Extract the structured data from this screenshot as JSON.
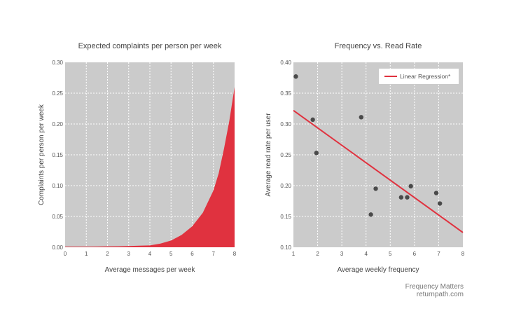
{
  "colors": {
    "panel": "#cbcbcb",
    "accent": "#e0323f",
    "point": "#4a4a4a",
    "text": "#555555",
    "grid": "#ffffff"
  },
  "chart_data": [
    {
      "type": "area",
      "title": "Expected complaints per person per week",
      "xlabel": "Average messages per week",
      "ylabel": "Complaints per person per week",
      "xlim": [
        0,
        8
      ],
      "ylim": [
        0,
        0.3
      ],
      "x_ticks": [
        "0",
        "1",
        "2",
        "3",
        "4",
        "5",
        "6",
        "7",
        "8"
      ],
      "y_ticks": [
        "0.00",
        "0.05",
        "0.10",
        "0.15",
        "0.20",
        "0.25",
        "0.30"
      ],
      "grid": true,
      "x": [
        0,
        0.5,
        1,
        1.5,
        2,
        2.5,
        3,
        3.5,
        4,
        4.5,
        5,
        5.5,
        6,
        6.5,
        7,
        7.25,
        7.5,
        7.75,
        8
      ],
      "y": [
        0.001,
        0.001,
        0.001,
        0.0012,
        0.0014,
        0.0016,
        0.002,
        0.0025,
        0.003,
        0.006,
        0.011,
        0.02,
        0.034,
        0.056,
        0.092,
        0.12,
        0.16,
        0.205,
        0.26
      ]
    },
    {
      "type": "scatter",
      "title": "Frequency vs. Read Rate",
      "xlabel": "Average weekly frequency",
      "ylabel": "Average read rate per user",
      "xlim": [
        1,
        8
      ],
      "ylim": [
        0.1,
        0.4
      ],
      "x_ticks": [
        "1",
        "2",
        "3",
        "4",
        "5",
        "6",
        "7",
        "8"
      ],
      "y_ticks": [
        "0.10",
        "0.15",
        "0.20",
        "0.25",
        "0.30",
        "0.35",
        "0.40"
      ],
      "grid": true,
      "legend": {
        "label": "Linear Regression*",
        "placement": "top-right"
      },
      "points": [
        {
          "x": 1.1,
          "y": 0.377
        },
        {
          "x": 1.8,
          "y": 0.307
        },
        {
          "x": 1.95,
          "y": 0.253
        },
        {
          "x": 3.8,
          "y": 0.311
        },
        {
          "x": 4.2,
          "y": 0.153
        },
        {
          "x": 4.4,
          "y": 0.195
        },
        {
          "x": 5.45,
          "y": 0.181
        },
        {
          "x": 5.7,
          "y": 0.181
        },
        {
          "x": 5.85,
          "y": 0.199
        },
        {
          "x": 6.9,
          "y": 0.188
        },
        {
          "x": 7.05,
          "y": 0.171
        }
      ],
      "regression": {
        "x": [
          1,
          8
        ],
        "y": [
          0.322,
          0.124
        ]
      }
    }
  ],
  "footer": {
    "line1": "Frequency Matters",
    "line2": "returnpath.com"
  }
}
